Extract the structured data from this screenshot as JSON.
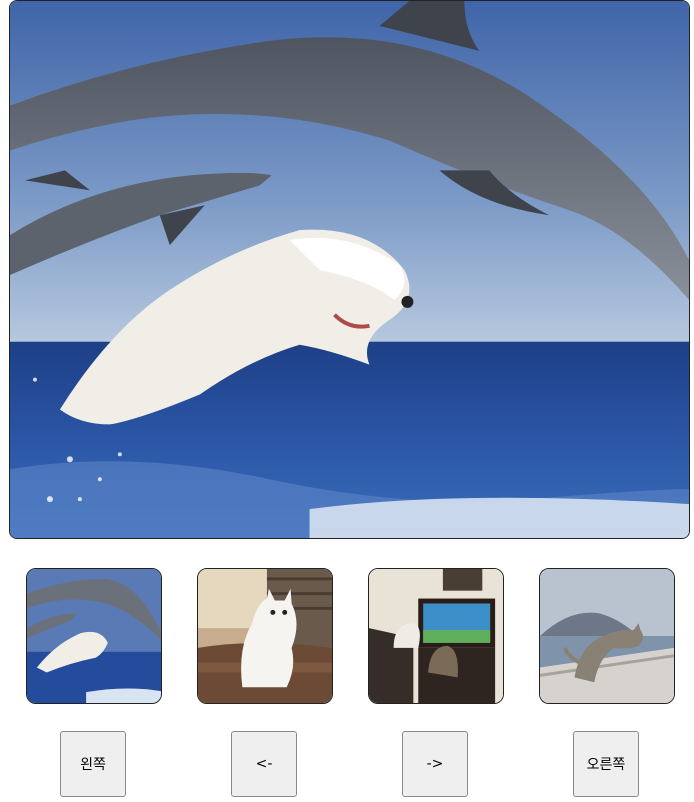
{
  "gallery": {
    "main_image": {
      "subject": "dolphins-and-dog-jumping"
    },
    "thumbnails": [
      {
        "subject": "dolphins-and-dog-jumping"
      },
      {
        "subject": "white-cat-on-couch"
      },
      {
        "subject": "cats-watching-aquarium"
      },
      {
        "subject": "cat-on-seawall"
      }
    ],
    "buttons": {
      "left_label": "왼쪽",
      "prev_label": "<-",
      "next_label": "->",
      "right_label": "오른쪽"
    }
  }
}
